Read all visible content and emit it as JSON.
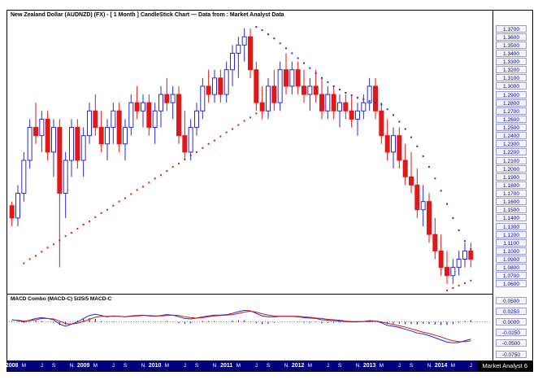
{
  "window": {
    "title": "New Zealand Dollar (AUDNZD) (FX) -  [ 1 Month ] CandleStick Chart — Data from : Market Analyst Data",
    "branding": "Market Analyst 6"
  },
  "chart_data": {
    "type": "candlestick",
    "instrument": "New Zealand Dollar (AUDNZD) (FX)",
    "interval": "1 Month",
    "source": "Market Analyst Data",
    "colors": {
      "up": "#2a2ad0",
      "down": "#e01818",
      "sar_red": "#e01818",
      "sar_blue": "#2a2ad0",
      "macd_line": "#2a2ad0",
      "macd_signal": "#cc1818",
      "histogram": "#000060",
      "axis_text": "#00008b",
      "strip_bg": "#000080"
    },
    "price_axis": {
      "min": 1.06,
      "max": 1.37,
      "step": 0.01,
      "ticks": [
        "1.3700",
        "1.3600",
        "1.3500",
        "1.3400",
        "1.3300",
        "1.3200",
        "1.3100",
        "1.3000",
        "1.2900",
        "1.2800",
        "1.2700",
        "1.2600",
        "1.2500",
        "1.2400",
        "1.2300",
        "1.2200",
        "1.2100",
        "1.2000",
        "1.1900",
        "1.1800",
        "1.1700",
        "1.1600",
        "1.1500",
        "1.1400",
        "1.1300",
        "1.1200",
        "1.1100",
        "1.1000",
        "1.0900",
        "1.0800",
        "1.0700",
        "1.0600"
      ]
    },
    "x_axis": {
      "labels": [
        {
          "l": "2008",
          "m": 0,
          "y": true
        },
        {
          "l": "M",
          "m": 2
        },
        {
          "l": "J",
          "m": 5
        },
        {
          "l": "S",
          "m": 7
        },
        {
          "l": "N",
          "m": 10
        },
        {
          "l": "2009",
          "m": 12,
          "y": true
        },
        {
          "l": "M",
          "m": 14
        },
        {
          "l": "J",
          "m": 17
        },
        {
          "l": "S",
          "m": 19
        },
        {
          "l": "N",
          "m": 22
        },
        {
          "l": "2010",
          "m": 24,
          "y": true
        },
        {
          "l": "M",
          "m": 26
        },
        {
          "l": "J",
          "m": 29
        },
        {
          "l": "S",
          "m": 31
        },
        {
          "l": "N",
          "m": 34
        },
        {
          "l": "2011",
          "m": 36,
          "y": true
        },
        {
          "l": "M",
          "m": 38
        },
        {
          "l": "J",
          "m": 41
        },
        {
          "l": "S",
          "m": 43
        },
        {
          "l": "N",
          "m": 46
        },
        {
          "l": "2012",
          "m": 48,
          "y": true
        },
        {
          "l": "M",
          "m": 50
        },
        {
          "l": "J",
          "m": 53
        },
        {
          "l": "S",
          "m": 55
        },
        {
          "l": "N",
          "m": 58
        },
        {
          "l": "2013",
          "m": 60,
          "y": true
        },
        {
          "l": "M",
          "m": 62
        },
        {
          "l": "J",
          "m": 65
        },
        {
          "l": "S",
          "m": 67
        },
        {
          "l": "N",
          "m": 70
        },
        {
          "l": "2014",
          "m": 72,
          "y": true
        },
        {
          "l": "M",
          "m": 74
        },
        {
          "l": "J",
          "m": 77
        },
        {
          "l": "S",
          "m": 79
        }
      ]
    },
    "start": "2008-01",
    "ohlc": [
      [
        1.155,
        1.16,
        1.13,
        1.14
      ],
      [
        1.14,
        1.18,
        1.13,
        1.17
      ],
      [
        1.17,
        1.22,
        1.16,
        1.21
      ],
      [
        1.21,
        1.26,
        1.2,
        1.25
      ],
      [
        1.25,
        1.28,
        1.23,
        1.24
      ],
      [
        1.24,
        1.27,
        1.22,
        1.26
      ],
      [
        1.26,
        1.27,
        1.21,
        1.22
      ],
      [
        1.22,
        1.26,
        1.19,
        1.25
      ],
      [
        1.25,
        1.26,
        1.08,
        1.17
      ],
      [
        1.17,
        1.22,
        1.14,
        1.21
      ],
      [
        1.21,
        1.26,
        1.19,
        1.25
      ],
      [
        1.25,
        1.26,
        1.2,
        1.21
      ],
      [
        1.21,
        1.25,
        1.19,
        1.24
      ],
      [
        1.24,
        1.28,
        1.23,
        1.27
      ],
      [
        1.27,
        1.29,
        1.24,
        1.25
      ],
      [
        1.25,
        1.27,
        1.22,
        1.23
      ],
      [
        1.23,
        1.26,
        1.21,
        1.25
      ],
      [
        1.25,
        1.28,
        1.23,
        1.27
      ],
      [
        1.27,
        1.28,
        1.22,
        1.23
      ],
      [
        1.23,
        1.26,
        1.21,
        1.25
      ],
      [
        1.25,
        1.29,
        1.24,
        1.28
      ],
      [
        1.28,
        1.3,
        1.26,
        1.27
      ],
      [
        1.27,
        1.29,
        1.25,
        1.28
      ],
      [
        1.28,
        1.29,
        1.24,
        1.25
      ],
      [
        1.25,
        1.28,
        1.23,
        1.27
      ],
      [
        1.27,
        1.3,
        1.25,
        1.29
      ],
      [
        1.29,
        1.31,
        1.27,
        1.28
      ],
      [
        1.28,
        1.3,
        1.26,
        1.29
      ],
      [
        1.29,
        1.3,
        1.23,
        1.24
      ],
      [
        1.24,
        1.27,
        1.21,
        1.22
      ],
      [
        1.22,
        1.26,
        1.21,
        1.25
      ],
      [
        1.25,
        1.28,
        1.24,
        1.27
      ],
      [
        1.27,
        1.31,
        1.26,
        1.3
      ],
      [
        1.3,
        1.32,
        1.28,
        1.29
      ],
      [
        1.29,
        1.32,
        1.28,
        1.31
      ],
      [
        1.31,
        1.32,
        1.28,
        1.29
      ],
      [
        1.29,
        1.33,
        1.28,
        1.32
      ],
      [
        1.32,
        1.35,
        1.3,
        1.34
      ],
      [
        1.34,
        1.36,
        1.31,
        1.35
      ],
      [
        1.35,
        1.37,
        1.33,
        1.36
      ],
      [
        1.36,
        1.37,
        1.31,
        1.32
      ],
      [
        1.32,
        1.33,
        1.27,
        1.28
      ],
      [
        1.28,
        1.3,
        1.26,
        1.27
      ],
      [
        1.27,
        1.31,
        1.26,
        1.3
      ],
      [
        1.3,
        1.32,
        1.27,
        1.28
      ],
      [
        1.28,
        1.33,
        1.27,
        1.32
      ],
      [
        1.32,
        1.34,
        1.29,
        1.3
      ],
      [
        1.3,
        1.33,
        1.29,
        1.32
      ],
      [
        1.32,
        1.33,
        1.29,
        1.3
      ],
      [
        1.3,
        1.32,
        1.28,
        1.29
      ],
      [
        1.29,
        1.31,
        1.27,
        1.3
      ],
      [
        1.3,
        1.32,
        1.28,
        1.29
      ],
      [
        1.29,
        1.31,
        1.26,
        1.27
      ],
      [
        1.27,
        1.3,
        1.26,
        1.29
      ],
      [
        1.29,
        1.3,
        1.26,
        1.27
      ],
      [
        1.27,
        1.29,
        1.25,
        1.28
      ],
      [
        1.28,
        1.29,
        1.26,
        1.27
      ],
      [
        1.27,
        1.29,
        1.25,
        1.26
      ],
      [
        1.26,
        1.28,
        1.24,
        1.27
      ],
      [
        1.27,
        1.29,
        1.26,
        1.28
      ],
      [
        1.28,
        1.31,
        1.27,
        1.3
      ],
      [
        1.3,
        1.31,
        1.26,
        1.27
      ],
      [
        1.27,
        1.28,
        1.23,
        1.24
      ],
      [
        1.24,
        1.26,
        1.21,
        1.22
      ],
      [
        1.22,
        1.25,
        1.2,
        1.24
      ],
      [
        1.24,
        1.25,
        1.2,
        1.21
      ],
      [
        1.21,
        1.23,
        1.18,
        1.19
      ],
      [
        1.19,
        1.22,
        1.17,
        1.18
      ],
      [
        1.18,
        1.2,
        1.14,
        1.15
      ],
      [
        1.15,
        1.18,
        1.13,
        1.16
      ],
      [
        1.16,
        1.17,
        1.11,
        1.12
      ],
      [
        1.12,
        1.14,
        1.09,
        1.1
      ],
      [
        1.1,
        1.12,
        1.07,
        1.08
      ],
      [
        1.08,
        1.1,
        1.06,
        1.07
      ],
      [
        1.07,
        1.09,
        1.06,
        1.08
      ],
      [
        1.08,
        1.1,
        1.07,
        1.09
      ],
      [
        1.09,
        1.11,
        1.08,
        1.1
      ],
      [
        1.1,
        1.11,
        1.08,
        1.09
      ]
    ],
    "sar": [
      {
        "color": "red",
        "start": 2,
        "values": [
          1.085,
          1.09,
          1.094,
          1.099,
          1.104,
          1.108,
          1.113,
          1.118,
          1.122,
          1.127,
          1.132,
          1.136,
          1.141,
          1.146,
          1.15,
          1.155,
          1.16,
          1.164,
          1.169,
          1.174,
          1.178,
          1.183,
          1.188,
          1.192,
          1.197,
          1.202,
          1.206,
          1.211,
          1.216,
          1.22,
          1.225,
          1.23,
          1.234,
          1.239,
          1.244,
          1.248,
          1.253,
          1.258,
          1.262,
          1.267
        ]
      },
      {
        "color": "blue",
        "start": 41,
        "values": [
          1.372,
          1.368,
          1.363,
          1.358,
          1.352,
          1.346,
          1.34,
          1.334,
          1.328,
          1.322,
          1.316,
          1.31,
          1.305,
          1.3,
          1.296,
          1.292,
          1.289,
          1.286,
          1.284,
          1.282,
          1.28,
          1.278,
          1.272,
          1.265,
          1.257,
          1.248,
          1.238,
          1.227,
          1.215,
          1.202,
          1.188,
          1.173,
          1.157,
          1.14,
          1.125,
          1.112,
          1.102
        ]
      },
      {
        "color": "red",
        "start": 73,
        "values": [
          1.052,
          1.055,
          1.058,
          1.061,
          1.064
        ]
      }
    ],
    "macd": {
      "label": "MACD Combo (MACD-C) 5/25/5 MACD-C",
      "ticks": [
        "0.0500",
        "0.0250",
        "0.0000",
        "-0.0250",
        "-0.0500",
        "-0.0750"
      ],
      "line": [
        0.005,
        0.003,
        0.0,
        0.004,
        0.008,
        0.01,
        0.008,
        0.005,
        -0.005,
        -0.01,
        -0.005,
        0.0,
        0.008,
        0.015,
        0.018,
        0.015,
        0.012,
        0.014,
        0.013,
        0.012,
        0.014,
        0.015,
        0.016,
        0.014,
        0.013,
        0.015,
        0.017,
        0.016,
        0.012,
        0.008,
        0.007,
        0.009,
        0.012,
        0.014,
        0.016,
        0.016,
        0.017,
        0.02,
        0.024,
        0.027,
        0.026,
        0.02,
        0.014,
        0.012,
        0.012,
        0.013,
        0.013,
        0.013,
        0.012,
        0.01,
        0.009,
        0.008,
        0.005,
        0.004,
        0.003,
        0.002,
        0.001,
        0.0,
        0.0,
        0.001,
        0.003,
        0.002,
        -0.002,
        -0.008,
        -0.01,
        -0.013,
        -0.017,
        -0.021,
        -0.026,
        -0.028,
        -0.032,
        -0.037,
        -0.042,
        -0.047,
        -0.049,
        -0.048,
        -0.044,
        -0.04
      ],
      "signal": [
        0.004,
        0.004,
        0.002,
        0.003,
        0.005,
        0.008,
        0.008,
        0.007,
        0.002,
        -0.004,
        -0.005,
        -0.003,
        0.001,
        0.006,
        0.011,
        0.013,
        0.013,
        0.013,
        0.013,
        0.012,
        0.013,
        0.014,
        0.015,
        0.015,
        0.014,
        0.014,
        0.015,
        0.016,
        0.015,
        0.012,
        0.01,
        0.009,
        0.01,
        0.012,
        0.014,
        0.015,
        0.016,
        0.017,
        0.02,
        0.023,
        0.025,
        0.023,
        0.019,
        0.016,
        0.014,
        0.013,
        0.013,
        0.013,
        0.013,
        0.012,
        0.011,
        0.009,
        0.008,
        0.006,
        0.005,
        0.004,
        0.002,
        0.001,
        0.001,
        0.001,
        0.001,
        0.002,
        0.0,
        -0.003,
        -0.006,
        -0.009,
        -0.012,
        -0.016,
        -0.02,
        -0.024,
        -0.027,
        -0.031,
        -0.035,
        -0.04,
        -0.044,
        -0.046,
        -0.046,
        -0.044
      ]
    }
  }
}
